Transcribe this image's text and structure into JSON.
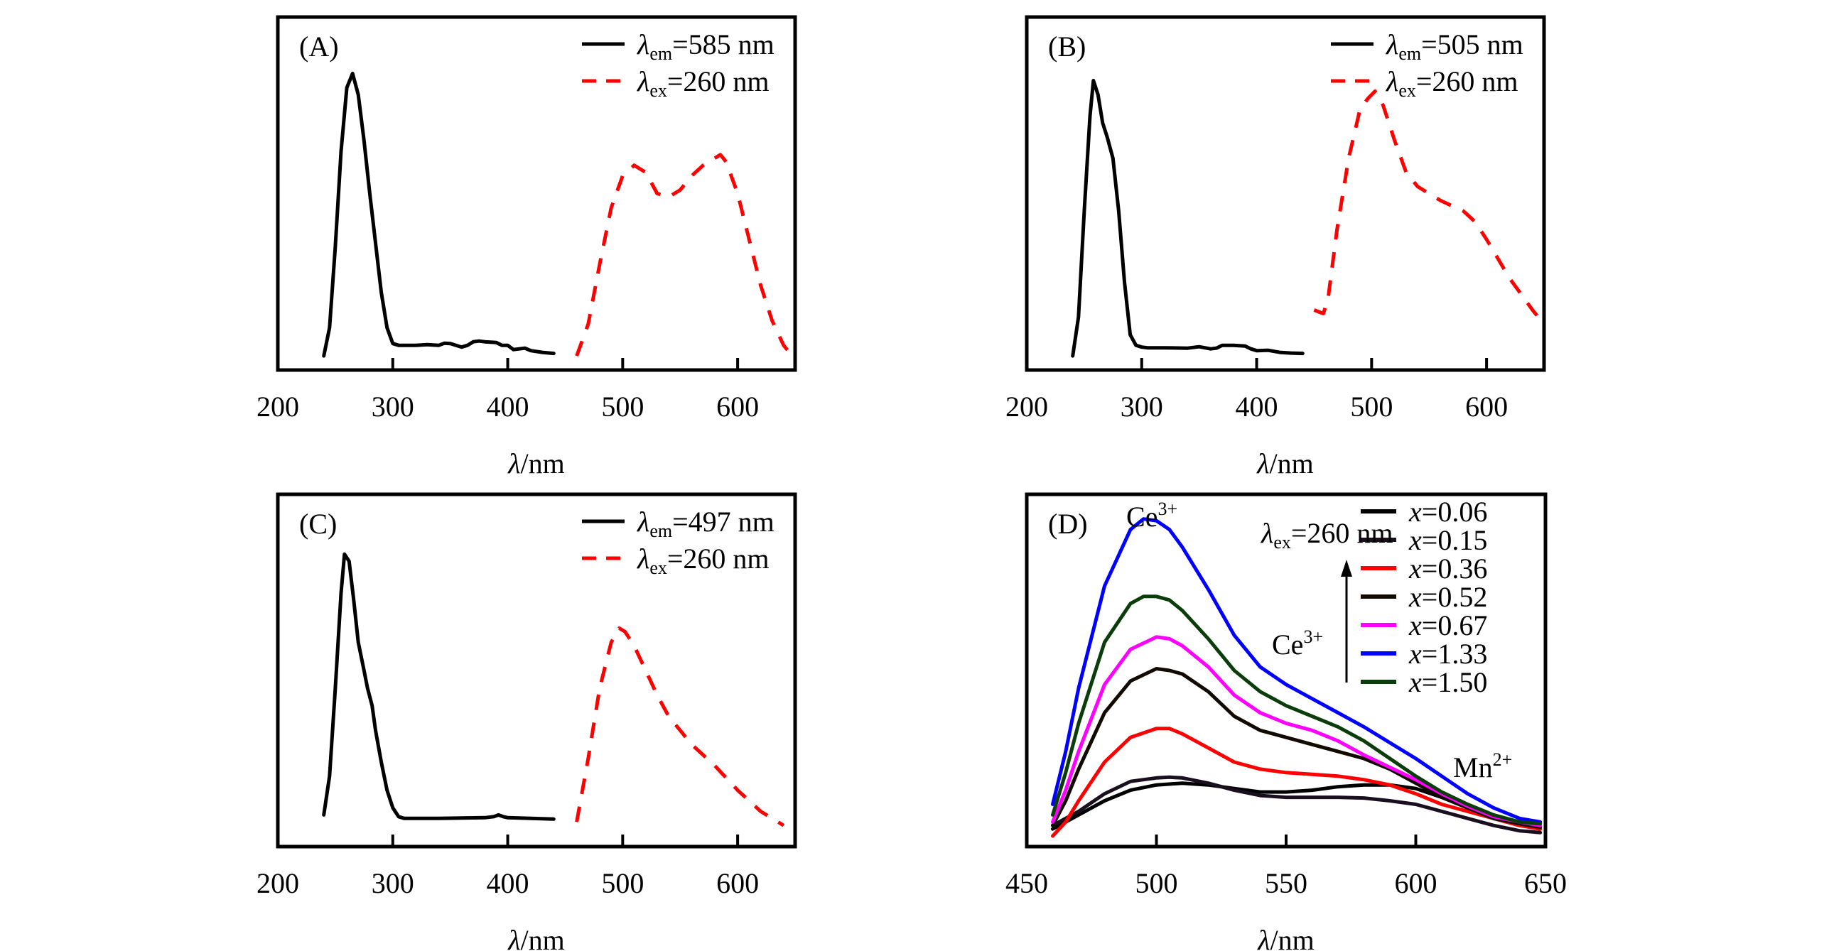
{
  "figure": {
    "panels": [
      "A",
      "B",
      "C",
      "D"
    ]
  },
  "chart_data": [
    {
      "id": "A",
      "type": "line",
      "panel_label": "(A)",
      "xlabel": "λ/nm",
      "ylabel": "",
      "xlim": [
        200,
        650
      ],
      "ylim": [
        0,
        1
      ],
      "xticks": [
        200,
        300,
        400,
        500,
        600
      ],
      "yticks": [],
      "grid": false,
      "legend": "top-right",
      "series": [
        {
          "name": "λem=585 nm",
          "legend_main": "λ",
          "legend_sub": "em",
          "legend_rest": "=585 nm",
          "color": "#000000",
          "style": "solid",
          "x": [
            240,
            245,
            250,
            255,
            260,
            265,
            270,
            275,
            280,
            285,
            290,
            295,
            300,
            305,
            310,
            320,
            330,
            340,
            345,
            350,
            360,
            365,
            370,
            375,
            380,
            390,
            395,
            400,
            405,
            410,
            415,
            420,
            430,
            440
          ],
          "y": [
            0.04,
            0.12,
            0.35,
            0.62,
            0.8,
            0.84,
            0.78,
            0.65,
            0.5,
            0.36,
            0.22,
            0.12,
            0.075,
            0.07,
            0.07,
            0.07,
            0.072,
            0.07,
            0.076,
            0.075,
            0.065,
            0.07,
            0.08,
            0.082,
            0.08,
            0.078,
            0.07,
            0.07,
            0.058,
            0.06,
            0.062,
            0.055,
            0.05,
            0.047
          ]
        },
        {
          "name": "λex=260 nm",
          "legend_main": "λ",
          "legend_sub": "ex",
          "legend_rest": "=260 nm",
          "color": "#ff0000",
          "style": "dashed",
          "x": [
            460,
            470,
            480,
            490,
            500,
            510,
            520,
            530,
            540,
            550,
            560,
            570,
            580,
            585,
            590,
            600,
            610,
            620,
            630,
            640,
            650
          ],
          "y": [
            0.04,
            0.13,
            0.3,
            0.46,
            0.55,
            0.58,
            0.56,
            0.5,
            0.49,
            0.51,
            0.55,
            0.58,
            0.6,
            0.61,
            0.59,
            0.5,
            0.37,
            0.24,
            0.14,
            0.07,
            0.03
          ]
        }
      ]
    },
    {
      "id": "B",
      "type": "line",
      "panel_label": "(B)",
      "xlabel": "λ/nm",
      "ylabel": "",
      "xlim": [
        200,
        650
      ],
      "ylim": [
        0,
        1
      ],
      "xticks": [
        200,
        300,
        400,
        500,
        600
      ],
      "yticks": [],
      "grid": false,
      "legend": "top-right",
      "series": [
        {
          "name": "λem=505 nm",
          "legend_main": "λ",
          "legend_sub": "em",
          "legend_rest": "=505 nm",
          "color": "#000000",
          "style": "solid",
          "x": [
            240,
            245,
            250,
            255,
            258,
            262,
            266,
            270,
            275,
            280,
            285,
            290,
            295,
            300,
            305,
            310,
            320,
            340,
            350,
            360,
            365,
            370,
            380,
            390,
            395,
            400,
            410,
            420,
            430,
            440
          ],
          "y": [
            0.04,
            0.15,
            0.45,
            0.72,
            0.82,
            0.78,
            0.7,
            0.66,
            0.6,
            0.45,
            0.25,
            0.1,
            0.07,
            0.065,
            0.063,
            0.063,
            0.063,
            0.062,
            0.066,
            0.06,
            0.062,
            0.07,
            0.07,
            0.068,
            0.06,
            0.055,
            0.056,
            0.05,
            0.048,
            0.047
          ]
        },
        {
          "name": "λex=260 nm",
          "legend_main": "λ",
          "legend_sub": "ex",
          "legend_rest": "=260 nm",
          "color": "#ff0000",
          "style": "dashed",
          "x": [
            450,
            458,
            462,
            470,
            480,
            490,
            497,
            503,
            510,
            520,
            530,
            540,
            560,
            580,
            590,
            600,
            620,
            640,
            650
          ],
          "y": [
            0.17,
            0.16,
            0.2,
            0.4,
            0.6,
            0.74,
            0.77,
            0.79,
            0.75,
            0.65,
            0.56,
            0.52,
            0.48,
            0.45,
            0.42,
            0.37,
            0.26,
            0.17,
            0.13
          ]
        }
      ]
    },
    {
      "id": "C",
      "type": "line",
      "panel_label": "(C)",
      "xlabel": "λ/nm",
      "ylabel": "",
      "xlim": [
        200,
        650
      ],
      "ylim": [
        0,
        1
      ],
      "xticks": [
        200,
        300,
        400,
        500,
        600
      ],
      "yticks": [],
      "grid": false,
      "legend": "top-right",
      "series": [
        {
          "name": "λem=497 nm",
          "legend_main": "λ",
          "legend_sub": "em",
          "legend_rest": "=497 nm",
          "color": "#000000",
          "style": "solid",
          "x": [
            240,
            245,
            250,
            255,
            258,
            262,
            266,
            270,
            275,
            278,
            282,
            285,
            290,
            295,
            300,
            305,
            310,
            315,
            320,
            340,
            360,
            380,
            388,
            392,
            396,
            400,
            410,
            420,
            430,
            440
          ],
          "y": [
            0.09,
            0.2,
            0.45,
            0.72,
            0.83,
            0.81,
            0.7,
            0.58,
            0.5,
            0.45,
            0.4,
            0.33,
            0.24,
            0.16,
            0.11,
            0.085,
            0.08,
            0.08,
            0.08,
            0.08,
            0.081,
            0.082,
            0.085,
            0.09,
            0.085,
            0.082,
            0.081,
            0.08,
            0.079,
            0.078
          ]
        },
        {
          "name": "λex=260 nm",
          "legend_main": "λ",
          "legend_sub": "ex",
          "legend_rest": "=260 nm",
          "color": "#ff0000",
          "style": "dashed",
          "x": [
            460,
            470,
            480,
            490,
            497,
            502,
            510,
            520,
            530,
            540,
            550,
            560,
            580,
            600,
            620,
            640
          ],
          "y": [
            0.07,
            0.25,
            0.45,
            0.58,
            0.62,
            0.61,
            0.57,
            0.5,
            0.43,
            0.37,
            0.33,
            0.29,
            0.23,
            0.16,
            0.1,
            0.06
          ]
        }
      ]
    },
    {
      "id": "D",
      "type": "line",
      "panel_label": "(D)",
      "xlabel": "λ/nm",
      "ylabel": "",
      "xlim": [
        450,
        650
      ],
      "ylim": [
        0,
        1
      ],
      "xticks": [
        450,
        500,
        550,
        600,
        650
      ],
      "yticks": [],
      "grid": false,
      "legend": "top-right",
      "annotations": [
        {
          "id": "ce-top",
          "main": "Ce",
          "sup": "3+"
        },
        {
          "id": "lambda-ex",
          "main": "λ",
          "sub": "ex",
          "rest": "=260 nm"
        },
        {
          "id": "ce-arrow",
          "main": "Ce",
          "sup": "3+"
        },
        {
          "id": "mn",
          "main": "Mn",
          "sup": "2+"
        }
      ],
      "series": [
        {
          "name": "x=0.06",
          "legend_var": "x",
          "legend_rest": "=0.06",
          "color": "#000000",
          "style": "solid",
          "x": [
            460,
            470,
            480,
            490,
            500,
            510,
            520,
            530,
            540,
            550,
            560,
            570,
            580,
            590,
            600,
            610,
            620,
            630,
            640,
            648
          ],
          "y": [
            0.05,
            0.09,
            0.13,
            0.16,
            0.175,
            0.18,
            0.175,
            0.165,
            0.155,
            0.155,
            0.16,
            0.17,
            0.175,
            0.175,
            0.165,
            0.14,
            0.11,
            0.08,
            0.06,
            0.05
          ]
        },
        {
          "name": "x=0.15",
          "legend_var": "x",
          "legend_rest": "=0.15",
          "color": "#1a0f1f",
          "style": "solid",
          "x": [
            460,
            470,
            480,
            490,
            500,
            505,
            510,
            520,
            530,
            540,
            550,
            560,
            570,
            580,
            590,
            600,
            610,
            620,
            630,
            640,
            648
          ],
          "y": [
            0.06,
            0.1,
            0.15,
            0.185,
            0.195,
            0.197,
            0.195,
            0.18,
            0.16,
            0.145,
            0.14,
            0.14,
            0.14,
            0.138,
            0.13,
            0.12,
            0.1,
            0.08,
            0.06,
            0.045,
            0.04
          ]
        },
        {
          "name": "x=0.36",
          "legend_var": "x",
          "legend_rest": "=0.36",
          "color": "#ff0000",
          "style": "solid",
          "x": [
            460,
            465,
            470,
            480,
            490,
            500,
            505,
            510,
            520,
            530,
            540,
            550,
            560,
            570,
            580,
            590,
            600,
            610,
            620,
            630,
            640,
            648
          ],
          "y": [
            0.03,
            0.07,
            0.13,
            0.24,
            0.31,
            0.335,
            0.335,
            0.32,
            0.28,
            0.24,
            0.22,
            0.21,
            0.205,
            0.2,
            0.19,
            0.175,
            0.15,
            0.12,
            0.1,
            0.08,
            0.06,
            0.05
          ]
        },
        {
          "name": "x=0.52",
          "legend_var": "x",
          "legend_rest": "=0.52",
          "color": "#120a00",
          "style": "solid",
          "x": [
            460,
            465,
            470,
            480,
            490,
            500,
            505,
            510,
            520,
            530,
            540,
            550,
            560,
            570,
            580,
            590,
            600,
            610,
            620,
            630,
            640,
            648
          ],
          "y": [
            0.06,
            0.13,
            0.22,
            0.38,
            0.47,
            0.505,
            0.5,
            0.49,
            0.44,
            0.37,
            0.33,
            0.31,
            0.29,
            0.27,
            0.25,
            0.22,
            0.18,
            0.14,
            0.11,
            0.08,
            0.065,
            0.055
          ]
        },
        {
          "name": "x=0.67",
          "legend_var": "x",
          "legend_rest": "=0.67",
          "color": "#ff00ff",
          "style": "solid",
          "x": [
            460,
            465,
            470,
            480,
            490,
            500,
            505,
            510,
            520,
            530,
            540,
            550,
            560,
            570,
            580,
            590,
            600,
            610,
            620,
            630,
            640,
            648
          ],
          "y": [
            0.07,
            0.16,
            0.27,
            0.46,
            0.56,
            0.595,
            0.59,
            0.57,
            0.51,
            0.43,
            0.38,
            0.35,
            0.33,
            0.3,
            0.26,
            0.225,
            0.19,
            0.15,
            0.115,
            0.085,
            0.07,
            0.06
          ]
        },
        {
          "name": "x=1.33",
          "legend_var": "x",
          "legend_rest": "=1.33",
          "color": "#0000ff",
          "style": "solid",
          "x": [
            460,
            465,
            470,
            480,
            490,
            495,
            500,
            505,
            510,
            520,
            530,
            540,
            550,
            560,
            570,
            580,
            590,
            600,
            610,
            620,
            630,
            640,
            648
          ],
          "y": [
            0.12,
            0.27,
            0.45,
            0.74,
            0.9,
            0.93,
            0.925,
            0.9,
            0.85,
            0.73,
            0.6,
            0.51,
            0.46,
            0.42,
            0.38,
            0.34,
            0.295,
            0.25,
            0.2,
            0.15,
            0.11,
            0.08,
            0.07
          ]
        },
        {
          "name": "x=1.50",
          "legend_var": "x",
          "legend_rest": "=1.50",
          "color": "#0a3d0a",
          "style": "solid",
          "x": [
            460,
            465,
            470,
            480,
            490,
            495,
            500,
            505,
            510,
            520,
            530,
            540,
            550,
            560,
            570,
            580,
            590,
            600,
            610,
            620,
            630,
            640,
            648
          ],
          "y": [
            0.09,
            0.21,
            0.35,
            0.58,
            0.69,
            0.71,
            0.71,
            0.7,
            0.67,
            0.59,
            0.5,
            0.44,
            0.4,
            0.37,
            0.34,
            0.3,
            0.25,
            0.2,
            0.155,
            0.12,
            0.09,
            0.07,
            0.065
          ]
        }
      ]
    }
  ]
}
